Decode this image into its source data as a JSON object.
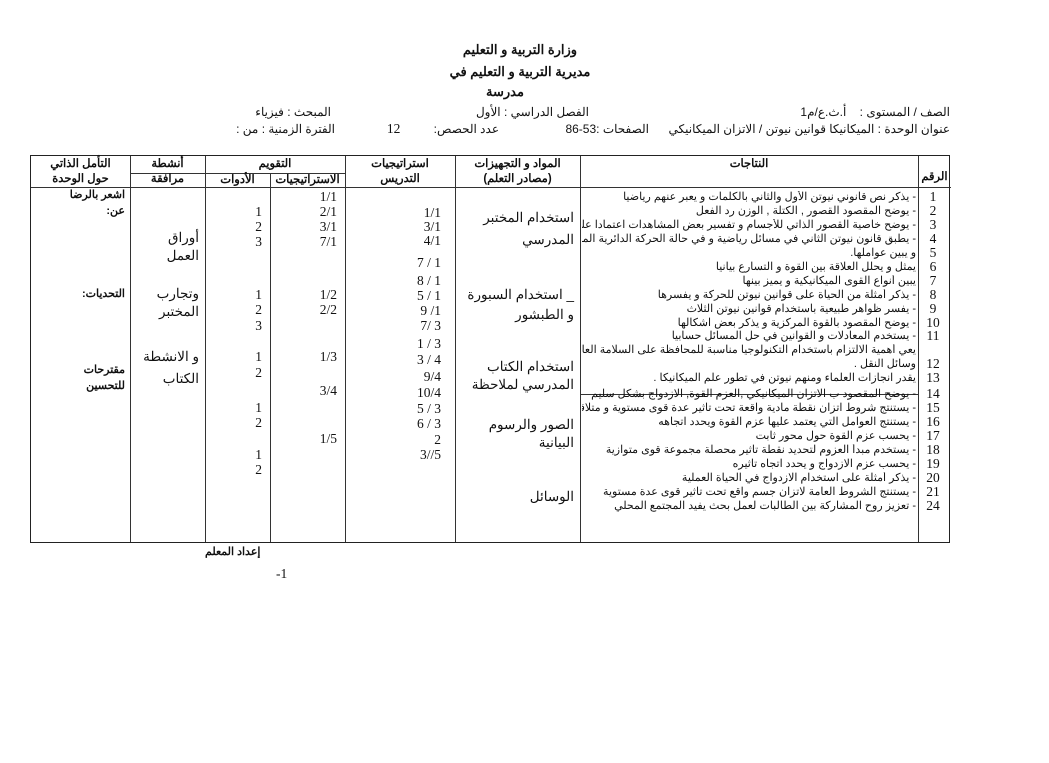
{
  "header": {
    "ministry": "وزارة التربية و التعليم",
    "directorate": "مديرية التربية و التعليم في",
    "school": "مدرسة",
    "grade_label": "الصف / المستوى :",
    "grade_value": "أ.ث.ع/م1",
    "semester": "الفصل الدراسي : الأول",
    "subject": "المبحث : فيزياء",
    "unit_title": "عنوان الوحدة : الميكانيكا قوانين نيوتن / الاتزان الميكانيكي",
    "pages": "الصفحات :53-86",
    "periods_label": "عدد الحصص:",
    "periods_value": "12",
    "period_range": "الفترة الزمنية : من :"
  },
  "table": {
    "headers": {
      "number": "الرقم",
      "outcomes": "النتاجات",
      "materials": "المواد و التجهيزات",
      "materials_sub": "(مصادر التعلم)",
      "teaching": "استراتيجيات",
      "teaching_sub": "التدريس",
      "evaluation": "التقويم",
      "eval_strategies": "الاستراتيجيات",
      "eval_tools": "الأدوات",
      "activities": "أنشطة",
      "activities_sub": "مرافقة",
      "reflection": "التأمل الذاتي",
      "reflection_sub": "حول الوحدة"
    },
    "outcomes": [
      {
        "n": "1",
        "text": "- يذكر نص قانوني نيوتن الأول والثاني بالكلمات و يعبر عنهم رياضيا"
      },
      {
        "n": "2",
        "text": "- يوضح المقصود القصور , الكتلة , الوزن  رد الفعل"
      },
      {
        "n": "3",
        "text": "- يوضح خاصية القصور الذاتي للأجسام و تفسير بعض المشاهدات اعتمادا عليها"
      },
      {
        "n": "4",
        "text": "- يطبق قانون نيوتن الثاني في مسائل رياضية و في حالة الحركة الدائرية المنتظمة"
      },
      {
        "n": "5",
        "text": "و يبين عواملها."
      },
      {
        "n": "6",
        "text": "يمثل و يحلل العلاقة بين القوة و التسارع بيانيا"
      },
      {
        "n": "7",
        "text": "يبين أنواع القوى الميكانيكية و يميز بينها"
      },
      {
        "n": "8",
        "text": "- يذكر أمثلة من الحياة على قوانين نيوتن للحركة و يفسرها"
      },
      {
        "n": "9",
        "text": "- يفسر ظواهر طبيعية باستخدام قوانين نيوتن الثلاث"
      },
      {
        "n": "10",
        "text": "- يوضح المقصود بالقوة المركزية و يذكر بعض اشكالها"
      },
      {
        "n": "11",
        "text": "- يستخدم المعادلات و القوانين في حل المسائل حسابيا"
      },
      {
        "n": "",
        "text": "يعي أهمية الالتزام باستخدام التكنولوجيا مناسبة للمحافظة على السلامة العامة في"
      },
      {
        "n": "12",
        "text": "وسائل النقل ."
      },
      {
        "n": "13",
        "text": "يقدر انجازات العلماء ومنهم نيوتن في تطور علم الميكانيكا ."
      },
      {
        "n": "14",
        "text": "- يوضح المقصود ب الاتزان الميكانيكي ,العزم القوة, الازدواج بشكل سليم"
      },
      {
        "n": "15",
        "text": "- يستنتج شروط اتزان نقطة مادية واقعة تحت تأثير عدة قوى مستوية و متلاقية"
      },
      {
        "n": "16",
        "text": "- يستنتج العوامل التي يعتمد عليها عزم القوة ويحدد اتجاهه"
      },
      {
        "n": "17",
        "text": "- يحسب عزم القوة حول محور ثابت"
      },
      {
        "n": "18",
        "text": "- يستخدم مبدأ العزوم لتحديد نقطة تأثير محصلة مجموعة قوى متوازية"
      },
      {
        "n": "19",
        "text": "- يحسب عزم الازدواج و يحدد اتجاه تأثيره"
      },
      {
        "n": "20",
        "text": "- يذكر أمثلة على استخدام الازدواج في الحياة العملية"
      },
      {
        "n": "21",
        "text": "- يستنتج الشروط العامة لاتزان جسم واقع تحت تأثير قوى عدة مستوية"
      },
      {
        "n": "24",
        "text": "- تعزيز روح المشاركة بين الطالبات لعمل بحث يفيد المجتمع المحلي"
      }
    ],
    "materials": [
      "استخدام المختبر",
      "المدرسي",
      "_ استخدام السبورة",
      "و الطبشور",
      "استخدام الكتاب",
      "المدرسي لملاحظة",
      "الصور والرسوم",
      "البيانية",
      "الوسائل"
    ],
    "teaching": [
      "1/1",
      "3/1",
      "4/1",
      "7 / 1",
      "8 / 1",
      "5 / 1",
      "9 /1",
      "7/ 3",
      "1 / 3",
      "3 / 4",
      "9/4",
      "10/4",
      "5 / 3",
      "6 / 3",
      "2",
      "3//5"
    ],
    "eval_strategies": [
      "1/1",
      "2/1",
      "3/1",
      "7/1",
      "1/2",
      "2/2",
      "1/3",
      "3/4",
      "1/5"
    ],
    "eval_tools": [
      "1",
      "2",
      "3",
      "1",
      "2",
      "3",
      "1",
      "2",
      "1",
      "2",
      "1",
      "2"
    ],
    "activities": [
      "أوراق",
      "العمل",
      "وتجارب",
      "المختبر",
      "و الانشطة",
      "الكتاب"
    ],
    "reflection": [
      "اشعر بالرضا",
      "عن:",
      "التحديات:",
      "مقترحات",
      "للتحسين"
    ]
  },
  "footer": {
    "prepared_by": "إعداد المعلم",
    "page_number": "-1"
  }
}
